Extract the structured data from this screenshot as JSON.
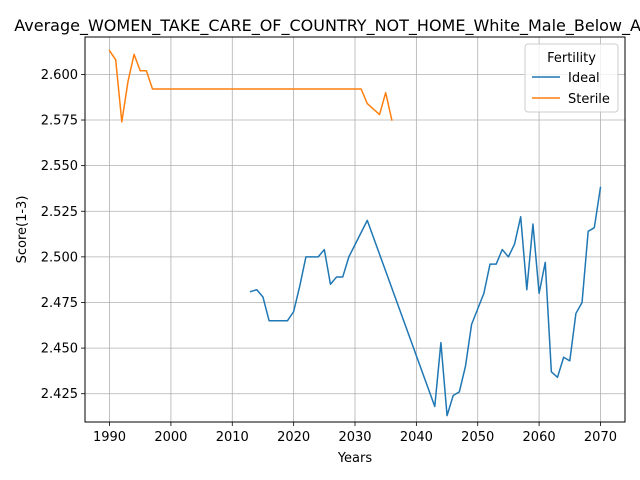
{
  "chart_data": {
    "type": "line",
    "title": "Average_WOMEN_TAKE_CARE_OF_COUNTRY_NOT_HOME_White_Male_Below_Average",
    "xlabel": "Years",
    "ylabel": "Score(1-3)",
    "xlim": [
      1986,
      2074
    ],
    "ylim": [
      2.4095,
      2.6205
    ],
    "xticks": [
      1990,
      2000,
      2010,
      2020,
      2030,
      2040,
      2050,
      2060,
      2070
    ],
    "yticks": [
      2.425,
      2.45,
      2.475,
      2.5,
      2.525,
      2.55,
      2.575,
      2.6
    ],
    "ytick_labels": [
      "2.425",
      "2.450",
      "2.475",
      "2.500",
      "2.525",
      "2.550",
      "2.575",
      "2.600"
    ],
    "grid": true,
    "legend": {
      "title": "Fertility",
      "placement": "top-right"
    },
    "series": [
      {
        "name": "Ideal",
        "color": "#1f77b4",
        "points": [
          [
            2013,
            2.481
          ],
          [
            2014,
            2.482
          ],
          [
            2015,
            2.478
          ],
          [
            2016,
            2.465
          ],
          [
            2019,
            2.465
          ],
          [
            2020,
            2.47
          ],
          [
            2021,
            2.484
          ],
          [
            2022,
            2.5
          ],
          [
            2024,
            2.5
          ],
          [
            2025,
            2.504
          ],
          [
            2026,
            2.485
          ],
          [
            2027,
            2.489
          ],
          [
            2028,
            2.489
          ],
          [
            2029,
            2.5
          ],
          [
            2032,
            2.52
          ],
          [
            2043,
            2.418
          ],
          [
            2044,
            2.453
          ],
          [
            2045,
            2.413
          ],
          [
            2046,
            2.424
          ],
          [
            2047,
            2.426
          ],
          [
            2048,
            2.44
          ],
          [
            2049,
            2.463
          ],
          [
            2051,
            2.48
          ],
          [
            2052,
            2.496
          ],
          [
            2053,
            2.496
          ],
          [
            2054,
            2.504
          ],
          [
            2055,
            2.5
          ],
          [
            2056,
            2.507
          ],
          [
            2057,
            2.522
          ],
          [
            2058,
            2.482
          ],
          [
            2059,
            2.518
          ],
          [
            2060,
            2.48
          ],
          [
            2061,
            2.497
          ],
          [
            2062,
            2.437
          ],
          [
            2063,
            2.434
          ],
          [
            2064,
            2.445
          ],
          [
            2065,
            2.443
          ],
          [
            2066,
            2.469
          ],
          [
            2067,
            2.475
          ],
          [
            2068,
            2.514
          ],
          [
            2069,
            2.516
          ],
          [
            2070,
            2.538
          ]
        ]
      },
      {
        "name": "Sterile",
        "color": "#ff7f0e",
        "points": [
          [
            1990,
            2.613
          ],
          [
            1991,
            2.608
          ],
          [
            1992,
            2.574
          ],
          [
            1993,
            2.596
          ],
          [
            1994,
            2.611
          ],
          [
            1995,
            2.602
          ],
          [
            1996,
            2.602
          ],
          [
            1997,
            2.592
          ],
          [
            2031,
            2.592
          ],
          [
            2032,
            2.584
          ],
          [
            2034,
            2.578
          ],
          [
            2035,
            2.59
          ],
          [
            2036,
            2.575
          ]
        ]
      }
    ]
  }
}
